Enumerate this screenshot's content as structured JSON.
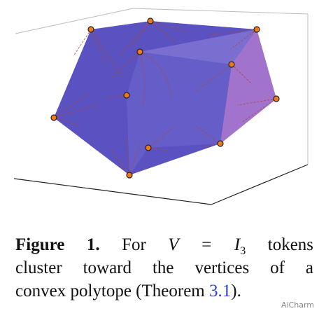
{
  "figure": {
    "caption": {
      "label": "Figure 1.",
      "text1": "For",
      "math": "V = I",
      "subscript": "3",
      "text2": "tokens",
      "line2": "cluster toward the vertices of a",
      "line3": "convex polytope (Theorem",
      "ref": "3.1",
      "line3_end": ")."
    },
    "watermark": "AiCharm"
  }
}
